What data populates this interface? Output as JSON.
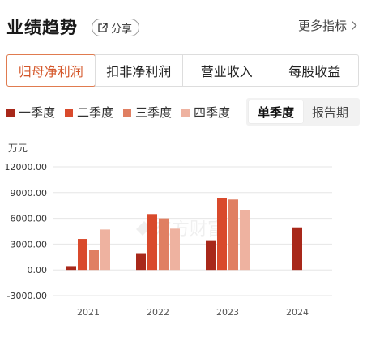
{
  "header": {
    "title": "业绩趋势",
    "share_label": "分享",
    "more_label": "更多指标"
  },
  "tabs": [
    "归母净利润",
    "扣非净利润",
    "营业收入",
    "每股收益"
  ],
  "legend": [
    {
      "name": "一季度",
      "color": "#a8281a"
    },
    {
      "name": "二季度",
      "color": "#d94a2c"
    },
    {
      "name": "三季度",
      "color": "#e07f62"
    },
    {
      "name": "四季度",
      "color": "#eeb2a0"
    }
  ],
  "period_toggle": {
    "options": [
      "单季度",
      "报告期"
    ],
    "selected": "单季度"
  },
  "watermark": "东方财富",
  "chart_data": {
    "type": "bar",
    "unit_label": "万元",
    "categories": [
      "2021",
      "2022",
      "2023",
      "2024"
    ],
    "series": [
      {
        "name": "一季度",
        "values": [
          450,
          1950,
          3450,
          4950
        ]
      },
      {
        "name": "二季度",
        "values": [
          3600,
          6500,
          8400,
          null
        ]
      },
      {
        "name": "三季度",
        "values": [
          2300,
          6000,
          8200,
          null
        ]
      },
      {
        "name": "四季度",
        "values": [
          4700,
          4800,
          7000,
          null
        ]
      }
    ],
    "yticks": [
      "12000.00",
      "9000.00",
      "6000.00",
      "3000.00",
      "0.00",
      "-3000.00"
    ],
    "ylim": [
      -3000,
      12000
    ],
    "grid": true
  }
}
